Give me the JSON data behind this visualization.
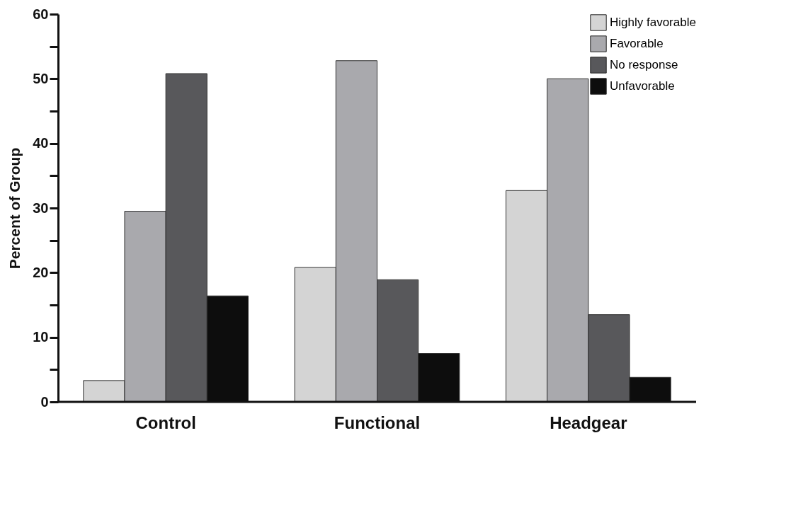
{
  "chart_data": {
    "type": "bar",
    "ylabel": "Percent of Group",
    "categories": [
      "Control",
      "Functional",
      "Headgear"
    ],
    "series": [
      {
        "name": "Highly favorable",
        "color": "#d4d4d4",
        "values": [
          3.3,
          20.8,
          32.7
        ]
      },
      {
        "name": "Favorable",
        "color": "#a9a9ad",
        "values": [
          29.5,
          52.8,
          50.0
        ]
      },
      {
        "name": "No response",
        "color": "#58585b",
        "values": [
          50.8,
          18.9,
          13.5
        ]
      },
      {
        "name": "Unfavorable",
        "color": "#0d0d0d",
        "values": [
          16.4,
          7.5,
          3.8
        ]
      }
    ],
    "ylim": [
      0,
      60
    ],
    "yticks": [
      0,
      {
        "value": 5,
        "label": null
      },
      10,
      {
        "value": 15,
        "label": null
      },
      20,
      {
        "value": 25,
        "label": null
      },
      30,
      {
        "value": 35,
        "label": null
      },
      40,
      {
        "value": 45,
        "label": null
      },
      50,
      {
        "value": 55,
        "label": null
      },
      60
    ],
    "grid": false,
    "legend": "top right"
  }
}
